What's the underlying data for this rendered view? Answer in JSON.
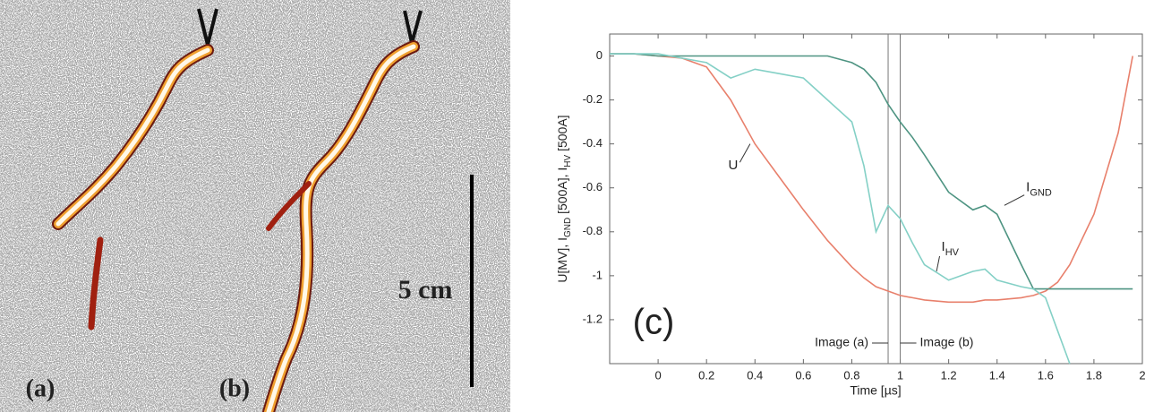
{
  "panels": {
    "a_label": "(a)",
    "b_label": "(b)",
    "scale_label": "5 cm"
  },
  "chart_data": {
    "type": "line",
    "panel_label": "(c)",
    "xlabel": "Time [µs]",
    "ylabel": [
      {
        "text": "U[MV], I"
      },
      {
        "sub": "GND"
      },
      {
        "text": " [500A], I"
      },
      {
        "sub": "HV"
      },
      {
        "text": " [500A]"
      }
    ],
    "x": [
      -0.2,
      -0.1,
      0,
      0.1,
      0.2,
      0.3,
      0.4,
      0.5,
      0.6,
      0.7,
      0.8,
      0.85,
      0.9,
      0.95,
      1.0,
      1.05,
      1.1,
      1.2,
      1.3,
      1.35,
      1.4,
      1.5,
      1.55,
      1.6,
      1.65,
      1.7,
      1.8,
      1.9,
      1.96
    ],
    "series": [
      {
        "color": "#e8806c",
        "values": [
          0.01,
          0.01,
          0,
          -0.01,
          -0.05,
          -0.2,
          -0.4,
          -0.55,
          -0.7,
          -0.84,
          -0.96,
          -1.01,
          -1.05,
          -1.07,
          -1.09,
          -1.1,
          -1.11,
          -1.12,
          -1.12,
          -1.11,
          -1.11,
          -1.1,
          -1.09,
          -1.07,
          -1.03,
          -0.95,
          -0.72,
          -0.35,
          0
        ]
      },
      {
        "color": "#4e9482",
        "values": [
          0.01,
          0.01,
          0,
          0,
          0,
          0,
          0,
          0,
          0,
          0,
          -0.03,
          -0.06,
          -0.12,
          -0.22,
          -0.3,
          -0.37,
          -0.45,
          -0.62,
          -0.7,
          -0.68,
          -0.72,
          -0.95,
          -1.06,
          -1.06,
          -1.06,
          -1.06,
          -1.06,
          -1.06,
          -1.06
        ]
      },
      {
        "color": "#84d0c6",
        "values": [
          0.01,
          0.01,
          0.01,
          -0.01,
          -0.03,
          -0.1,
          -0.06,
          -0.08,
          -0.1,
          -0.2,
          -0.3,
          -0.5,
          -0.8,
          -0.68,
          -0.74,
          -0.85,
          -0.95,
          -1.02,
          -0.98,
          -0.97,
          -1.02,
          -1.05,
          -1.06,
          -1.1,
          -1.25,
          -1.4,
          null,
          null,
          null
        ]
      }
    ],
    "annotations": [
      {
        "text": "U"
      },
      {
        "text": "I",
        "sub": "GND"
      },
      {
        "text": "I",
        "sub": "HV"
      }
    ],
    "markers": [
      {
        "x": 0.95,
        "label": "Image (a)"
      },
      {
        "x": 1.0,
        "label": "Image (b)"
      }
    ],
    "xlim": [
      -0.2,
      2
    ],
    "xticks": [
      0,
      0.2,
      0.4,
      0.6,
      0.8,
      1,
      1.2,
      1.4,
      1.6,
      1.8,
      2
    ],
    "ylim": [
      -1.4,
      0.1
    ],
    "yticks": [
      0,
      -0.2,
      -0.4,
      -0.6,
      -0.8,
      -1,
      -1.2
    ],
    "grid": false
  }
}
